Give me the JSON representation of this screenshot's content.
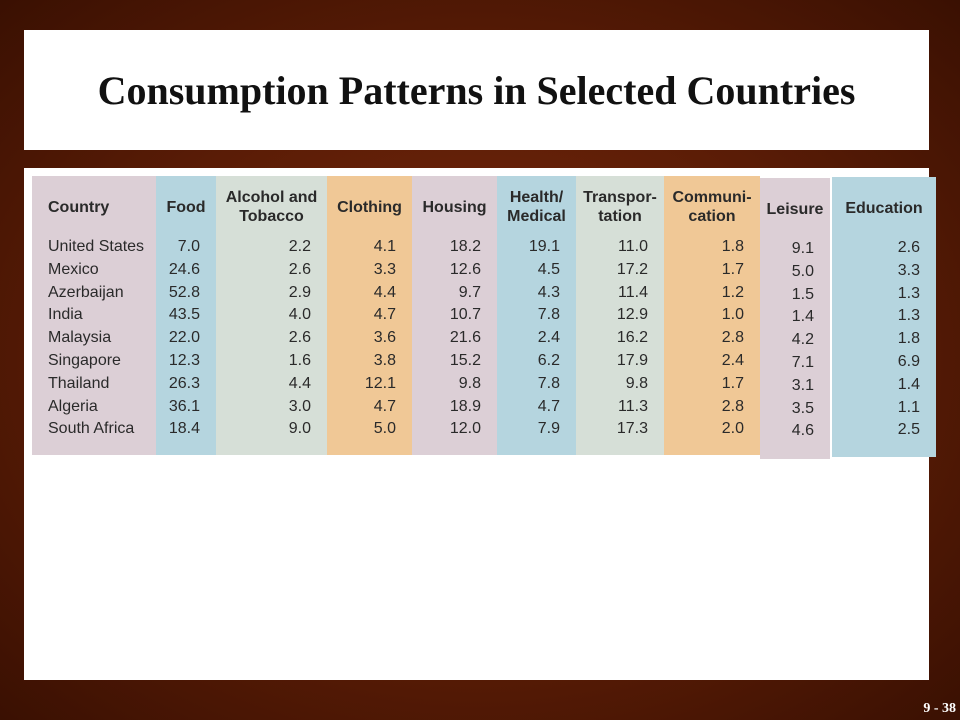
{
  "slide": {
    "title": "Consumption Patterns in Selected Countries",
    "page_label": "9 - 38"
  },
  "table": {
    "columns": [
      {
        "key": "country",
        "label": "Country",
        "color": "#dccfd6"
      },
      {
        "key": "food",
        "label": "Food",
        "color": "#b5d5df"
      },
      {
        "key": "alcohol",
        "label": "Alcohol and\nTobacco",
        "color": "#d6dfd7"
      },
      {
        "key": "clothing",
        "label": "Clothing",
        "color": "#f0c896"
      },
      {
        "key": "housing",
        "label": "Housing",
        "color": "#dccfd6"
      },
      {
        "key": "health",
        "label": "Health/\nMedical",
        "color": "#b5d5df"
      },
      {
        "key": "transport",
        "label": "Transpor-\ntation",
        "color": "#d6dfd7"
      },
      {
        "key": "communication",
        "label": "Communi-\ncation",
        "color": "#f0c896"
      },
      {
        "key": "leisure",
        "label": "Leisure",
        "color": "#dccfd6"
      },
      {
        "key": "education",
        "label": "Education",
        "color": "#b5d5df"
      }
    ],
    "rows": [
      [
        "United States",
        "7.0",
        "2.2",
        "4.1",
        "18.2",
        "19.1",
        "11.0",
        "1.8",
        "9.1",
        "2.6"
      ],
      [
        "Mexico",
        "24.6",
        "2.6",
        "3.3",
        "12.6",
        "4.5",
        "17.2",
        "1.7",
        "5.0",
        "3.3"
      ],
      [
        "Azerbaijan",
        "52.8",
        "2.9",
        "4.4",
        "9.7",
        "4.3",
        "11.4",
        "1.2",
        "1.5",
        "1.3"
      ],
      [
        "India",
        "43.5",
        "4.0",
        "4.7",
        "10.7",
        "7.8",
        "12.9",
        "1.0",
        "1.4",
        "1.3"
      ],
      [
        "Malaysia",
        "22.0",
        "2.6",
        "3.6",
        "21.6",
        "2.4",
        "16.2",
        "2.8",
        "4.2",
        "1.8"
      ],
      [
        "Singapore",
        "12.3",
        "1.6",
        "3.8",
        "15.2",
        "6.2",
        "17.9",
        "2.4",
        "7.1",
        "6.9"
      ],
      [
        "Thailand",
        "26.3",
        "4.4",
        "12.1",
        "9.8",
        "7.8",
        "9.8",
        "1.7",
        "3.1",
        "1.4"
      ],
      [
        "Algeria",
        "36.1",
        "3.0",
        "4.7",
        "18.9",
        "4.7",
        "11.3",
        "2.8",
        "3.5",
        "1.1"
      ],
      [
        "South Africa",
        "18.4",
        "9.0",
        "5.0",
        "12.0",
        "7.9",
        "17.3",
        "2.0",
        "4.6",
        "2.5"
      ]
    ]
  }
}
